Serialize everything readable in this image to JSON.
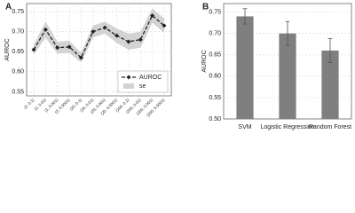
{
  "chart_data": [
    {
      "type": "line",
      "panel_label": "A",
      "y_label": "AUROC",
      "categories": [
        "(2, 0.1)",
        "(2, 0.01)",
        "(2, 0.001)",
        "(2, 0.0001)",
        "(20, 0.1)",
        "(20, 0.01)",
        "(20, 0.001)",
        "(20, 0.0001)",
        "(200, 0.1)",
        "(200, 0.01)",
        "(200, 0.001)",
        "(200, 0.0001)"
      ],
      "series": [
        {
          "name": "AUROC",
          "color": "#222222",
          "values": [
            0.655,
            0.705,
            0.66,
            0.662,
            0.635,
            0.7,
            0.71,
            0.69,
            0.675,
            0.68,
            0.74,
            0.715
          ],
          "errors": [
            0.012,
            0.02,
            0.015,
            0.015,
            0.012,
            0.015,
            0.015,
            0.018,
            0.02,
            0.02,
            0.018,
            0.018
          ]
        }
      ],
      "band_label": "se",
      "band_color": "#d3d3d3",
      "ylim": [
        0.54,
        0.77
      ],
      "yticks": [
        0.55,
        {
          "value": 0.6,
          "label": "0.60"
        },
        0.65,
        {
          "value": 0.7,
          "label": "0.70"
        },
        0.75
      ],
      "grid": true
    },
    {
      "type": "bar",
      "panel_label": "B",
      "y_label": "AUROC",
      "categories": [
        "SVM",
        "Logistic Regression",
        "Random Forest"
      ],
      "values": [
        0.74,
        0.7,
        0.66
      ],
      "errors": [
        0.018,
        0.028,
        0.028
      ],
      "color": "#7f7f7f",
      "ylim": [
        0.5,
        0.77
      ],
      "yticks": [
        {
          "value": 0.5,
          "label": "0.50"
        },
        0.55,
        {
          "value": 0.6,
          "label": "0.60"
        },
        0.65,
        {
          "value": 0.7,
          "label": "0.70"
        },
        0.75
      ],
      "grid": true
    }
  ]
}
